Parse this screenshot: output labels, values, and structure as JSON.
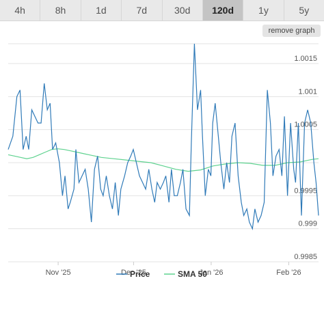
{
  "tabs": [
    {
      "label": "4h",
      "active": false
    },
    {
      "label": "8h",
      "active": false
    },
    {
      "label": "1d",
      "active": false
    },
    {
      "label": "7d",
      "active": false
    },
    {
      "label": "30d",
      "active": false
    },
    {
      "label": "120d",
      "active": true
    },
    {
      "label": "1y",
      "active": false
    },
    {
      "label": "5y",
      "active": false
    }
  ],
  "remove_graph_label": "remove graph",
  "colors": {
    "price": "#2f7ab8",
    "sma": "#5ed28f",
    "grid": "#e3e3e3",
    "tab_active": "#c4c4c4"
  },
  "chart_data": {
    "type": "line",
    "ylim": [
      0.9985,
      1.0018
    ],
    "yticks": [
      0.9985,
      0.999,
      0.9995,
      1.0,
      1.0005,
      1.001,
      1.0015
    ],
    "ytick_labels": [
      "0.9985",
      "0.999",
      "0.9995",
      "",
      "1.0005",
      "1.001",
      "1.0015"
    ],
    "xlim": [
      0,
      100
    ],
    "xticks": [
      {
        "x": 16.1,
        "label": "Nov '25"
      },
      {
        "x": 40.4,
        "label": "Dec '25"
      },
      {
        "x": 65.4,
        "label": "Jan '26"
      },
      {
        "x": 90.4,
        "label": "Feb '26"
      }
    ],
    "legend": [
      "Price",
      "SMA 50"
    ],
    "legend_position": "bottom",
    "series": [
      {
        "name": "Price",
        "points": [
          [
            0,
            1.0002
          ],
          [
            1.5,
            1.0004
          ],
          [
            2.8,
            1.001
          ],
          [
            3.8,
            1.0011
          ],
          [
            4.8,
            1.0002
          ],
          [
            5.8,
            1.0004
          ],
          [
            6.6,
            1.0002
          ],
          [
            7.6,
            1.0008
          ],
          [
            8.6,
            1.0007
          ],
          [
            9.6,
            1.0006
          ],
          [
            10.6,
            1.0006
          ],
          [
            11.6,
            1.0012
          ],
          [
            12.6,
            1.0008
          ],
          [
            13.5,
            1.0009
          ],
          [
            14.3,
            1.0002
          ],
          [
            15.3,
            1.0003
          ],
          [
            16.5,
            1.0
          ],
          [
            17.5,
            0.9995
          ],
          [
            18.3,
            0.9998
          ],
          [
            19.3,
            0.9993
          ],
          [
            20.0,
            0.9994
          ],
          [
            21.2,
            0.9996
          ],
          [
            21.8,
            1.0002
          ],
          [
            22.8,
            0.9997
          ],
          [
            23.8,
            0.9998
          ],
          [
            24.8,
            0.9999
          ],
          [
            25.8,
            0.9996
          ],
          [
            26.8,
            0.9991
          ],
          [
            27.8,
            0.9999
          ],
          [
            28.8,
            1.0001
          ],
          [
            29.8,
            0.9996
          ],
          [
            30.6,
            0.9995
          ],
          [
            31.6,
            0.9998
          ],
          [
            32.6,
            0.9995
          ],
          [
            33.6,
            0.9993
          ],
          [
            34.5,
            0.9997
          ],
          [
            35.5,
            0.9992
          ],
          [
            36.3,
            0.9996
          ],
          [
            37.5,
            0.9998
          ],
          [
            38.5,
            1.0
          ],
          [
            39.5,
            1.0001
          ],
          [
            40.3,
            1.0002
          ],
          [
            41.3,
            1.0
          ],
          [
            42.3,
            0.9998
          ],
          [
            43.3,
            0.9997
          ],
          [
            44.3,
            0.9996
          ],
          [
            45.3,
            0.9999
          ],
          [
            46.3,
            0.9996
          ],
          [
            47.2,
            0.9994
          ],
          [
            48.0,
            0.9997
          ],
          [
            49.0,
            0.9996
          ],
          [
            50.0,
            0.9997
          ],
          [
            50.8,
            0.9998
          ],
          [
            51.8,
            0.9994
          ],
          [
            52.6,
            0.9999
          ],
          [
            53.5,
            0.9995
          ],
          [
            54.5,
            0.9995
          ],
          [
            55.5,
            0.9997
          ],
          [
            56.3,
            0.9999
          ],
          [
            57.3,
            0.9993
          ],
          [
            58.4,
            0.9992
          ],
          [
            59.0,
            1.0003
          ],
          [
            60.0,
            1.0018
          ],
          [
            61.0,
            1.0008
          ],
          [
            62.0,
            1.0011
          ],
          [
            62.6,
            1.0004
          ],
          [
            63.5,
            0.9995
          ],
          [
            64.5,
            0.9999
          ],
          [
            65.3,
            0.9998
          ],
          [
            65.9,
            1.0006
          ],
          [
            66.7,
            1.0009
          ],
          [
            67.7,
            1.0004
          ],
          [
            68.5,
            1.0
          ],
          [
            69.5,
            0.9996
          ],
          [
            70.4,
            1.0
          ],
          [
            71.3,
            0.9997
          ],
          [
            72.1,
            1.0004
          ],
          [
            73.1,
            1.0006
          ],
          [
            74.1,
            0.9998
          ],
          [
            75.1,
            0.9994
          ],
          [
            75.9,
            0.9992
          ],
          [
            76.9,
            0.9993
          ],
          [
            77.7,
            0.9991
          ],
          [
            78.7,
            0.999
          ],
          [
            79.5,
            0.9993
          ],
          [
            80.5,
            0.9991
          ],
          [
            81.5,
            0.9992
          ],
          [
            82.5,
            0.9994
          ],
          [
            83.5,
            1.0011
          ],
          [
            84.5,
            1.0006
          ],
          [
            85.3,
            0.9998
          ],
          [
            86.3,
            1.0001
          ],
          [
            87.3,
            1.0002
          ],
          [
            88.2,
            0.9998
          ],
          [
            89.0,
            1.0007
          ],
          [
            90.0,
            0.9995
          ],
          [
            91.0,
            1.0006
          ],
          [
            92.0,
            0.9999
          ],
          [
            92.6,
            0.9997
          ],
          [
            93.5,
            1.0006
          ],
          [
            94.5,
            0.9992
          ],
          [
            95.5,
            1.0006
          ],
          [
            96.5,
            1.0008
          ],
          [
            97.5,
            1.0006
          ],
          [
            98.5,
            1.0
          ],
          [
            99.2,
            0.9997
          ],
          [
            100,
            0.9992
          ]
        ]
      },
      {
        "name": "SMA 50",
        "points": [
          [
            0,
            1.00012
          ],
          [
            2,
            1.0001
          ],
          [
            4,
            1.00008
          ],
          [
            6,
            1.00006
          ],
          [
            8,
            1.00008
          ],
          [
            10,
            1.00012
          ],
          [
            12,
            1.00016
          ],
          [
            14,
            1.0002
          ],
          [
            16,
            1.00021
          ],
          [
            18,
            1.0002
          ],
          [
            20,
            1.00018
          ],
          [
            22,
            1.00016
          ],
          [
            24,
            1.00014
          ],
          [
            26,
            1.00012
          ],
          [
            28,
            1.0001
          ],
          [
            30,
            1.00008
          ],
          [
            34,
            1.00006
          ],
          [
            38,
            1.00004
          ],
          [
            42,
            1.00002
          ],
          [
            46,
            1.0
          ],
          [
            50,
            0.99995
          ],
          [
            54,
            0.9999
          ],
          [
            58,
            0.99987
          ],
          [
            62,
            0.99989
          ],
          [
            66,
            0.99995
          ],
          [
            70,
            0.99998
          ],
          [
            74,
            1.0
          ],
          [
            78,
            0.99999
          ],
          [
            82,
            0.99996
          ],
          [
            86,
            0.99996
          ],
          [
            90,
            1.0
          ],
          [
            94,
            1.00001
          ],
          [
            96,
            1.00003
          ],
          [
            98,
            1.00005
          ],
          [
            100,
            1.00006
          ]
        ]
      }
    ]
  }
}
